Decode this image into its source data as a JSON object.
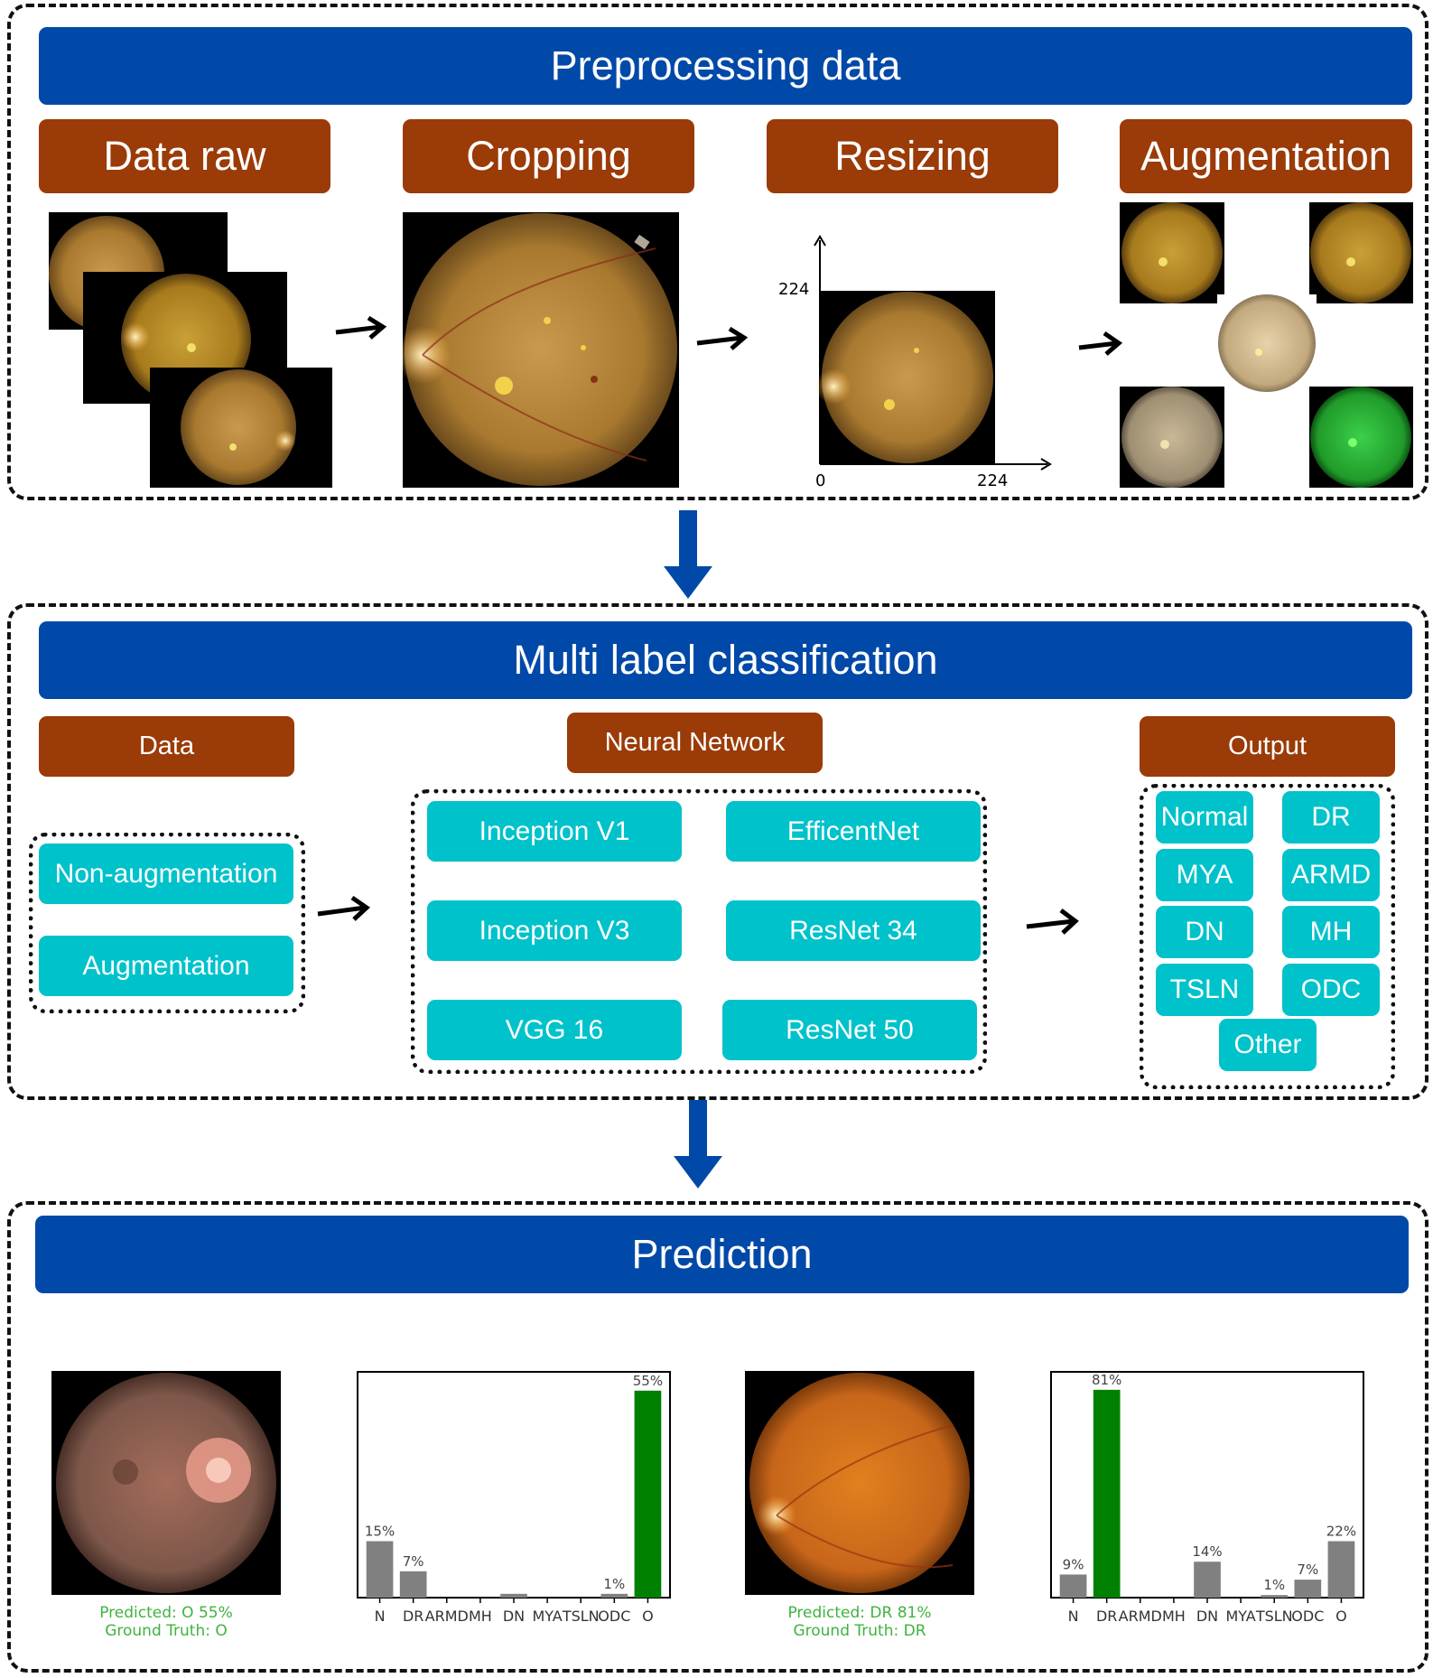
{
  "preprocessing": {
    "title": "Preprocessing data",
    "steps": [
      "Data raw",
      "Cropping",
      "Resizing",
      "Augmentation"
    ],
    "resize_axis": {
      "y_tick": "224",
      "x_origin": "0",
      "x_tick": "224"
    }
  },
  "classification": {
    "title": "Multi label classification",
    "data_label": "Data",
    "data_items": [
      "Non-augmentation",
      "Augmentation"
    ],
    "network_label": "Neural Network",
    "networks": [
      "Inception V1",
      "EfficentNet",
      "Inception V3",
      "ResNet 34",
      "VGG 16",
      "ResNet 50"
    ],
    "output_label": "Output",
    "outputs": [
      "Normal",
      "DR",
      "MYA",
      "ARMD",
      "DN",
      "MH",
      "TSLN",
      "ODC",
      "Other"
    ]
  },
  "prediction": {
    "title": "Prediction",
    "cases": [
      {
        "predicted": "Predicted: O 55%",
        "ground_truth": "Ground Truth: O"
      },
      {
        "predicted": "Predicted: DR 81%",
        "ground_truth": "Ground Truth: DR"
      }
    ]
  },
  "chart_data": [
    {
      "type": "bar",
      "categories": [
        "N",
        "DR",
        "ARMD",
        "MH",
        "DN",
        "MYA",
        "TSLN",
        "ODC",
        "O"
      ],
      "values": [
        15,
        7,
        0,
        0,
        1,
        0,
        0,
        1,
        55
      ],
      "data_labels": [
        "15%",
        "7%",
        "",
        "",
        "",
        "",
        "",
        "1%",
        "55%"
      ],
      "highlight_index": 8,
      "colors": {
        "bar": "#808080",
        "highlight": "#008000"
      },
      "ylim": [
        0,
        60
      ]
    },
    {
      "type": "bar",
      "categories": [
        "N",
        "DR",
        "ARMD",
        "MH",
        "DN",
        "MYA",
        "TSLN",
        "ODC",
        "O"
      ],
      "values": [
        9,
        81,
        0,
        0,
        14,
        0,
        1,
        7,
        22
      ],
      "data_labels": [
        "9%",
        "81%",
        "",
        "",
        "14%",
        "",
        "1%",
        "7%",
        "22%"
      ],
      "highlight_index": 1,
      "colors": {
        "bar": "#808080",
        "highlight": "#008000"
      },
      "ylim": [
        0,
        88
      ]
    }
  ],
  "colors": {
    "header": "#0149a8",
    "step": "#9b3b07",
    "chip": "#00c2cb",
    "caption": "#3fb33f"
  }
}
